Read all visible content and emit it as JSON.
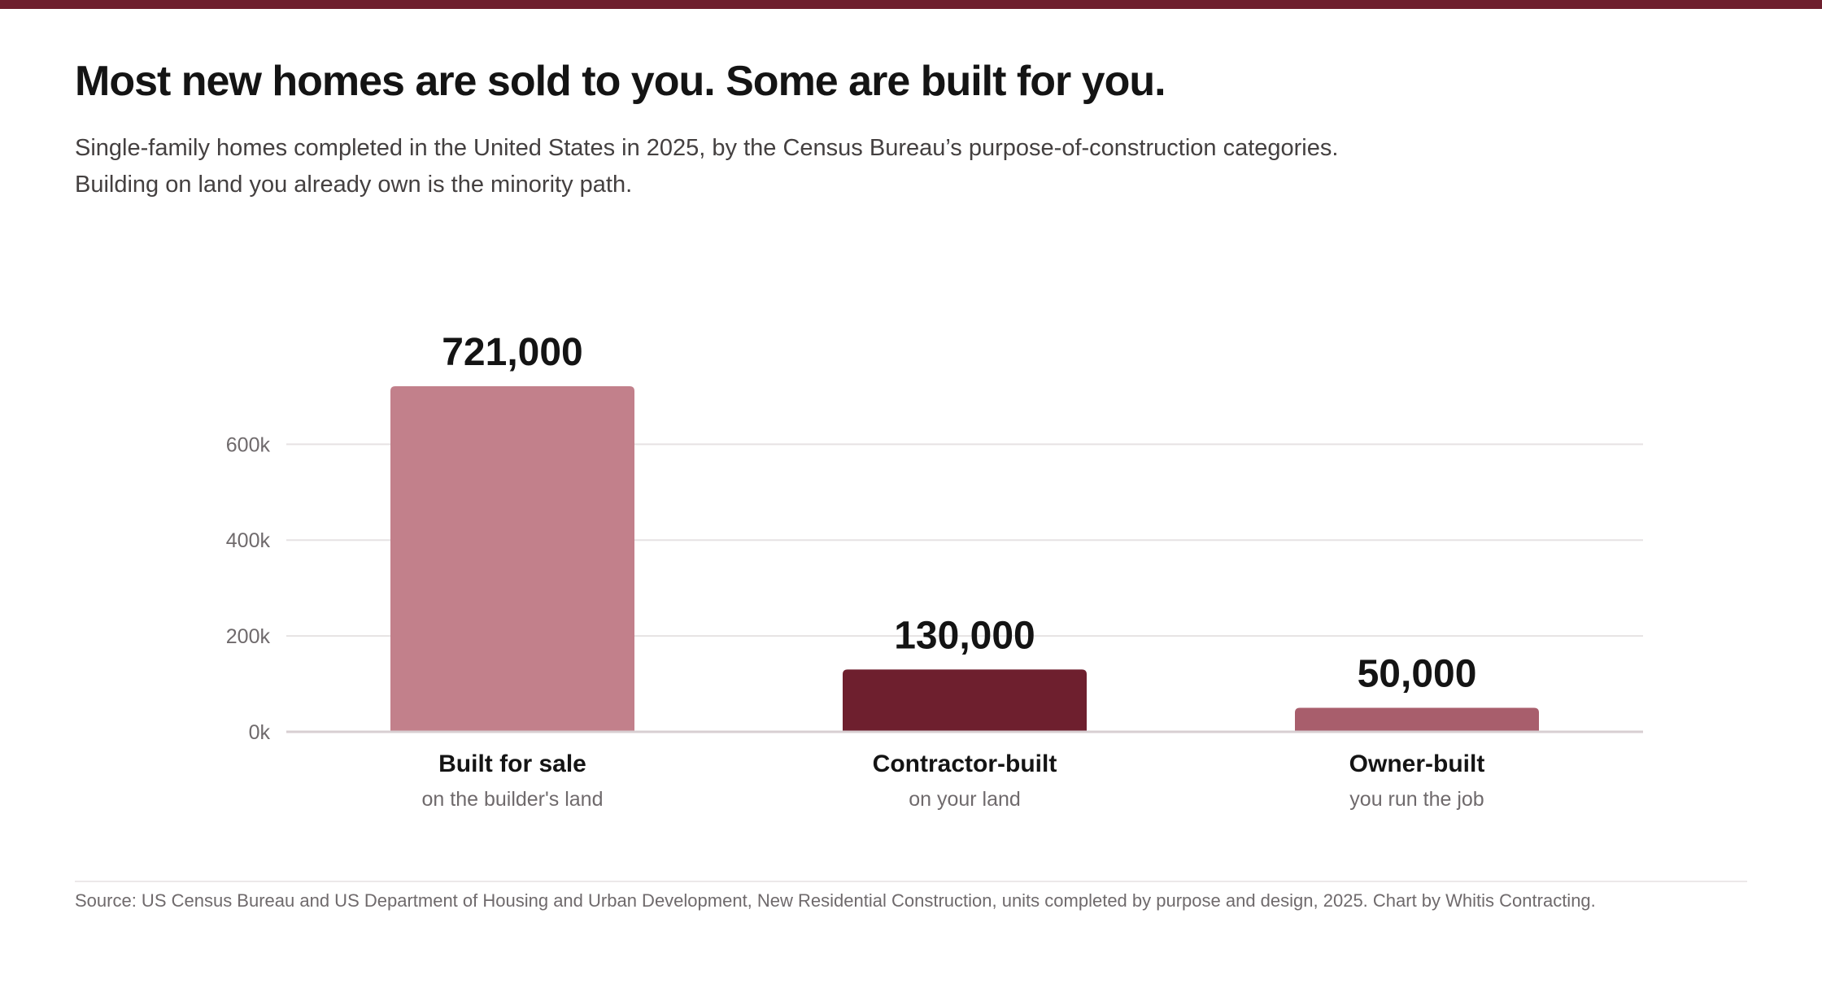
{
  "header": {
    "title": "Most new homes are sold to you. Some are built for you.",
    "subtitle": "Single-family homes completed in the United States in 2025, by the Census Bureau’s purpose-of-construction categories. Building on land you already own is the minority path."
  },
  "colors": {
    "accent_bar": "#6e1f2e",
    "grid": "#e6e2e3",
    "baseline": "#d8cfd2"
  },
  "chart_data": {
    "type": "bar",
    "categories": [
      "Built for sale",
      "Contractor-built",
      "Owner-built"
    ],
    "subcategories": [
      "on the builder's land",
      "on your land",
      "you run the job"
    ],
    "values": [
      721000,
      130000,
      50000
    ],
    "value_labels": [
      "721,000",
      "130,000",
      "50,000"
    ],
    "bar_colors": [
      "#c2808b",
      "#6e1f2e",
      "#a85e6c"
    ],
    "yticks": [
      0,
      200000,
      400000,
      600000
    ],
    "ytick_labels": [
      "0k",
      "200k",
      "400k",
      "600k"
    ],
    "ylim": [
      0,
      721000
    ],
    "grid": true,
    "xlabel": "",
    "ylabel": ""
  },
  "footer": {
    "source": "Source: US Census Bureau and US Department of Housing and Urban Development, New Residential Construction, units completed by purpose and design, 2025. Chart by Whitis Contracting."
  }
}
